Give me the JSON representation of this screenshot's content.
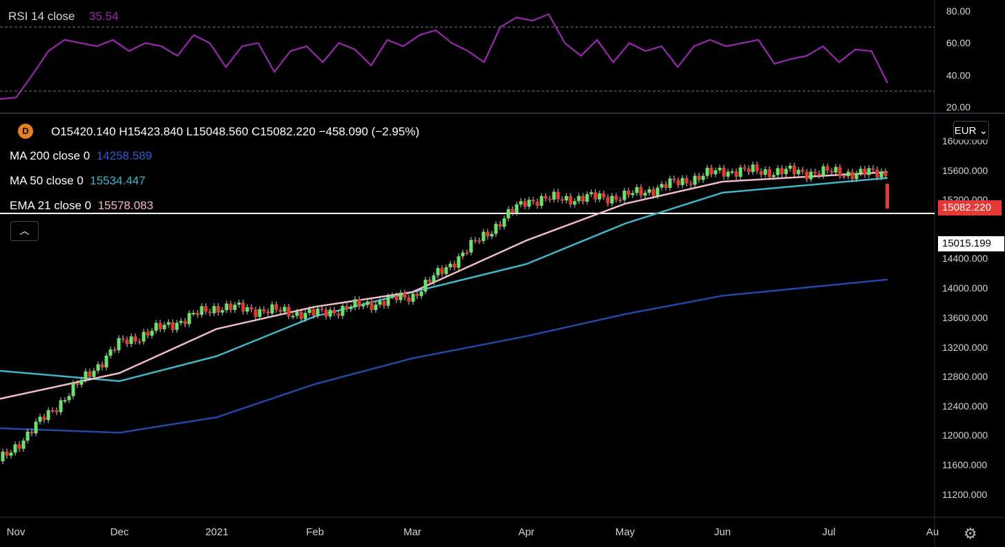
{
  "rsi": {
    "title": "RSI 14 close",
    "value": "35.54",
    "axis_labels": [
      "80.00",
      "60.00",
      "40.00",
      "20.00"
    ]
  },
  "symbol_badge": "D",
  "ohlc_line": "O15420.140  H15423.840  L15048.560  C15082.220  −458.090 (−2.95%)",
  "indicators": [
    {
      "name": "MA 200 close 0",
      "value": "14258.589",
      "color": "#2447a8"
    },
    {
      "name": "MA 50 close 0",
      "value": "15534.447",
      "color": "#3fb6c9"
    },
    {
      "name": "EMA 21 close 0",
      "value": "15578.083",
      "color": "#f3bcc6"
    }
  ],
  "currency": "EUR",
  "collapse_icon": "chevron-up-icon",
  "price_axis": [
    "16000.000",
    "15600.000",
    "15200.000",
    "14400.000",
    "14000.000",
    "13600.000",
    "13200.000",
    "12800.000",
    "12400.000",
    "12000.000",
    "11600.000",
    "11200.000"
  ],
  "last_price": "15082.220",
  "horizontal_line_price": "15015.199",
  "time_axis": [
    "Nov",
    "Dec",
    "2021",
    "Feb",
    "Mar",
    "Apr",
    "May",
    "Jun",
    "Jul",
    "Au"
  ],
  "colors": {
    "up": "#6fe06a",
    "down": "#e53935",
    "rsi": "#9c27b0",
    "background": "#000000"
  },
  "chart_data": {
    "type": "line",
    "title": "",
    "x": [
      "Nov",
      "Dec",
      "2021",
      "Feb",
      "Mar",
      "Apr",
      "May",
      "Jun",
      "Jul"
    ],
    "ylim": [
      11000,
      16200
    ],
    "series": [
      {
        "name": "MA 200 close 0",
        "values": [
          12100,
          12040,
          12250,
          12700,
          13050,
          13350,
          13650,
          13900,
          14120
        ]
      },
      {
        "name": "MA 50 close 0",
        "values": [
          12880,
          12740,
          13080,
          13620,
          13950,
          14330,
          14880,
          15300,
          15500
        ]
      },
      {
        "name": "EMA 21 close 0",
        "values": [
          12500,
          12850,
          13450,
          13750,
          13950,
          14650,
          15150,
          15450,
          15580
        ]
      },
      {
        "name": "Close",
        "values": [
          11650,
          13250,
          13750,
          13650,
          13900,
          15200,
          15250,
          15600,
          15560
        ]
      }
    ],
    "rsi": {
      "name": "RSI 14 close",
      "ylim": [
        15,
        85
      ],
      "levels": [
        70,
        30
      ],
      "values": [
        25,
        26,
        40,
        55,
        62,
        60,
        58,
        62,
        55,
        60,
        58,
        52,
        65,
        60,
        45,
        58,
        60,
        42,
        55,
        58,
        48,
        60,
        56,
        46,
        62,
        58,
        65,
        68,
        60,
        55,
        48,
        70,
        76,
        74,
        78,
        60,
        52,
        62,
        48,
        60,
        55,
        58,
        45,
        58,
        62,
        58,
        60,
        62,
        47,
        50,
        52,
        58,
        48,
        56,
        55,
        35
      ]
    }
  }
}
